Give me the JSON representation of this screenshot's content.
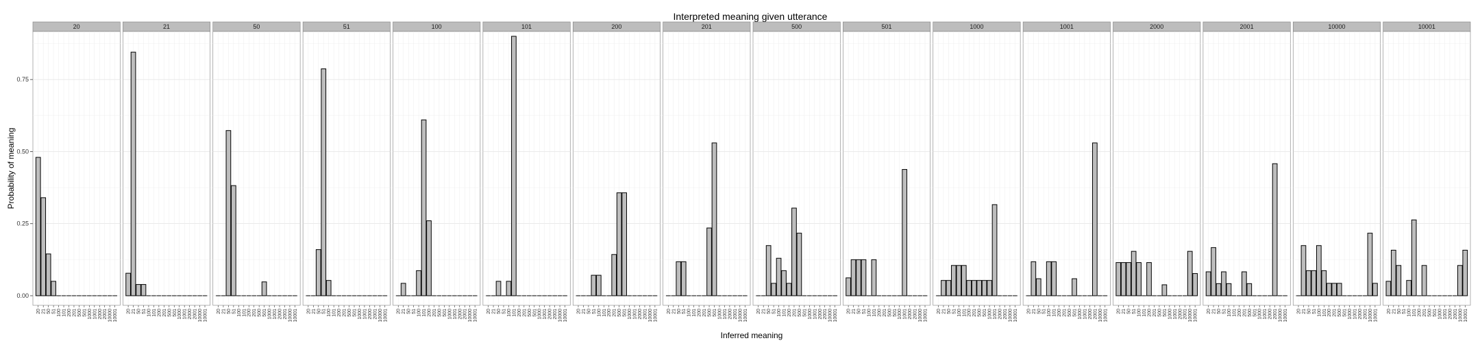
{
  "chart_data": {
    "type": "bar",
    "title": "Interpreted meaning given utterance",
    "xlabel": "Inferred meaning",
    "ylabel": "Probability of meaning",
    "ylim": [
      0,
      0.9
    ],
    "yticks": [
      "0.00",
      "0.25",
      "0.50",
      "0.75"
    ],
    "ytick_values": [
      0,
      0.25,
      0.5,
      0.75
    ],
    "grid": true,
    "bar_fill": "#bdbdbd",
    "bar_stroke": "#000000",
    "strip_fill": "#bdbdbd",
    "categories": [
      "20",
      "21",
      "50",
      "51",
      "100",
      "101",
      "200",
      "201",
      "500",
      "501",
      "1000",
      "1001",
      "2000",
      "2001",
      "10000",
      "10001"
    ],
    "facets": [
      {
        "label": "20",
        "values": [
          0.48,
          0.34,
          0.145,
          0.05,
          0,
          0,
          0,
          0,
          0,
          0,
          0,
          0,
          0,
          0,
          0,
          0
        ]
      },
      {
        "label": "21",
        "values": [
          0.078,
          0.845,
          0.039,
          0.039,
          0,
          0,
          0,
          0,
          0,
          0,
          0,
          0,
          0,
          0,
          0,
          0
        ]
      },
      {
        "label": "50",
        "values": [
          0,
          0,
          0.573,
          0.382,
          0,
          0,
          0,
          0,
          0,
          0.048,
          0,
          0,
          0,
          0,
          0,
          0
        ]
      },
      {
        "label": "51",
        "values": [
          0,
          0,
          0.16,
          0.787,
          0.053,
          0,
          0,
          0,
          0,
          0,
          0,
          0,
          0,
          0,
          0,
          0
        ]
      },
      {
        "label": "100",
        "values": [
          0,
          0.043,
          0,
          0,
          0.087,
          0.61,
          0.26,
          0,
          0,
          0,
          0,
          0,
          0,
          0,
          0,
          0
        ]
      },
      {
        "label": "101",
        "values": [
          0,
          0,
          0.05,
          0,
          0.05,
          0.9,
          0,
          0,
          0,
          0,
          0,
          0,
          0,
          0,
          0,
          0
        ]
      },
      {
        "label": "200",
        "values": [
          0,
          0,
          0,
          0.071,
          0.071,
          0,
          0,
          0.143,
          0.357,
          0.357,
          0,
          0,
          0,
          0,
          0,
          0
        ]
      },
      {
        "label": "201",
        "values": [
          0,
          0,
          0.118,
          0.118,
          0,
          0,
          0,
          0,
          0.235,
          0.53,
          0,
          0,
          0,
          0,
          0,
          0
        ]
      },
      {
        "label": "500",
        "values": [
          0,
          0,
          0.174,
          0.043,
          0.13,
          0.087,
          0.043,
          0.304,
          0.217,
          0,
          0,
          0,
          0,
          0,
          0,
          0
        ]
      },
      {
        "label": "501",
        "values": [
          0.062,
          0.125,
          0.125,
          0.125,
          0,
          0.125,
          0,
          0,
          0,
          0,
          0,
          0.438,
          0,
          0,
          0,
          0
        ]
      },
      {
        "label": "1000",
        "values": [
          0,
          0.053,
          0.053,
          0.105,
          0.105,
          0.105,
          0.053,
          0.053,
          0.053,
          0.053,
          0.053,
          0.316,
          0,
          0,
          0,
          0
        ]
      },
      {
        "label": "1001",
        "values": [
          0,
          0.118,
          0.059,
          0,
          0.118,
          0.118,
          0,
          0,
          0,
          0.059,
          0,
          0,
          0,
          0.53,
          0,
          0
        ]
      },
      {
        "label": "2000",
        "values": [
          0.115,
          0.115,
          0.115,
          0.154,
          0.115,
          0,
          0.115,
          0,
          0,
          0.038,
          0,
          0,
          0,
          0,
          0.154,
          0.077
        ]
      },
      {
        "label": "2001",
        "values": [
          0.083,
          0.167,
          0.042,
          0.083,
          0.042,
          0,
          0,
          0.083,
          0.042,
          0,
          0,
          0,
          0,
          0.458,
          0,
          0
        ]
      },
      {
        "label": "10000",
        "values": [
          0,
          0.174,
          0.087,
          0.087,
          0.174,
          0.087,
          0.043,
          0.043,
          0.043,
          0,
          0,
          0,
          0,
          0,
          0.217,
          0.043
        ]
      },
      {
        "label": "10001",
        "values": [
          0.05,
          0.158,
          0.105,
          0,
          0.053,
          0.263,
          0,
          0.105,
          0,
          0,
          0,
          0,
          0,
          0,
          0.105,
          0.158
        ]
      }
    ]
  }
}
